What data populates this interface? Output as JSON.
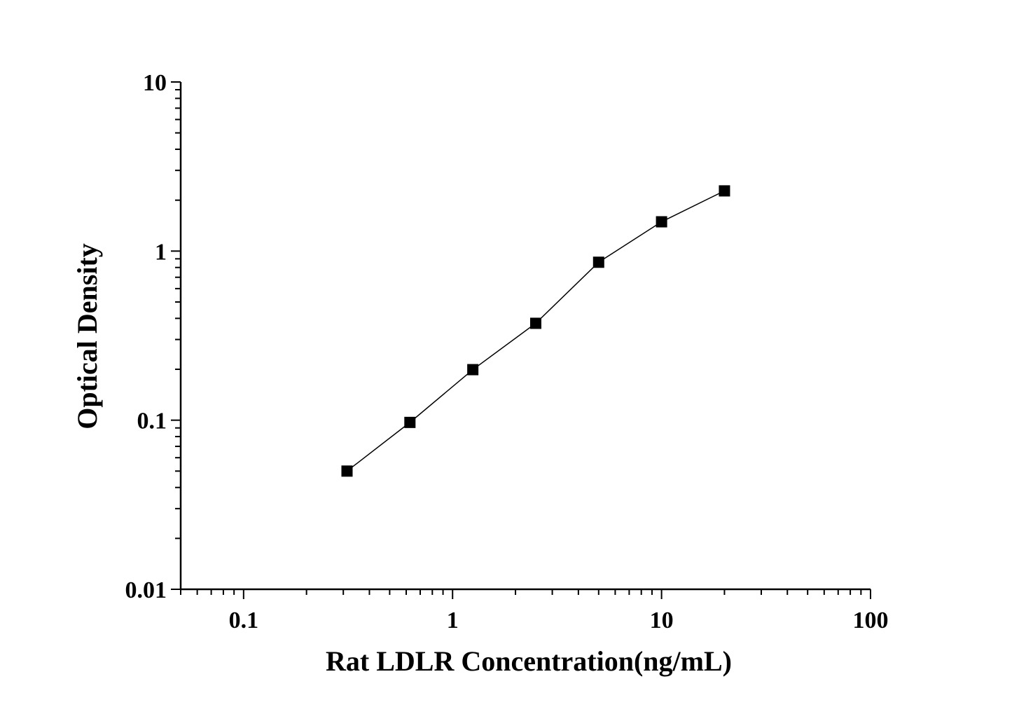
{
  "chart_data": {
    "type": "line",
    "title": "",
    "xlabel": "Rat LDLR Concentration(ng/mL)",
    "ylabel": "Optical Density",
    "xscale": "log",
    "yscale": "log",
    "xlim": [
      0.05,
      100
    ],
    "ylim": [
      0.01,
      10
    ],
    "xticks": [
      0.1,
      1,
      10,
      100
    ],
    "xtick_labels": [
      "0.1",
      "1",
      "10",
      "100"
    ],
    "yticks": [
      0.01,
      0.1,
      1,
      10
    ],
    "ytick_labels": [
      "0.01",
      "0.1",
      "1",
      "10"
    ],
    "grid": false,
    "marker": "square",
    "color": "#000000",
    "series": [
      {
        "x": [
          0.3125,
          0.625,
          1.25,
          2.5,
          5,
          10,
          20
        ],
        "y": [
          0.05,
          0.097,
          0.199,
          0.374,
          0.859,
          1.49,
          2.27
        ]
      }
    ]
  }
}
